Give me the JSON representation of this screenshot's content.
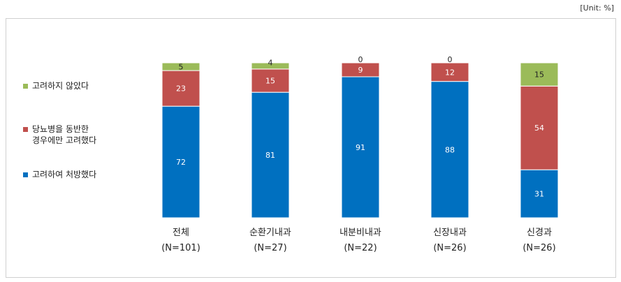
{
  "unit_label": "[Unit: %]",
  "chart_data": {
    "type": "bar",
    "stacked": true,
    "categories": [
      "전체",
      "순환기내과",
      "내분비내과",
      "신장내과",
      "신경과"
    ],
    "category_n": [
      "(N=101)",
      "(N=27)",
      "(N=22)",
      "(N=26)",
      "(N=26)"
    ],
    "series": [
      {
        "name": "고려하여 처방했다",
        "color": "#0070C0",
        "values": [
          72,
          81,
          91,
          88,
          31
        ]
      },
      {
        "name": "당뇨병을 동반한\n경우에만 고려했다",
        "color": "#C0504D",
        "values": [
          23,
          15,
          9,
          12,
          54
        ]
      },
      {
        "name": "고려하지 않았다",
        "color": "#9BBB59",
        "values": [
          5,
          4,
          0,
          0,
          15
        ]
      }
    ],
    "ylim": [
      0,
      100
    ],
    "legend_position": "left"
  }
}
